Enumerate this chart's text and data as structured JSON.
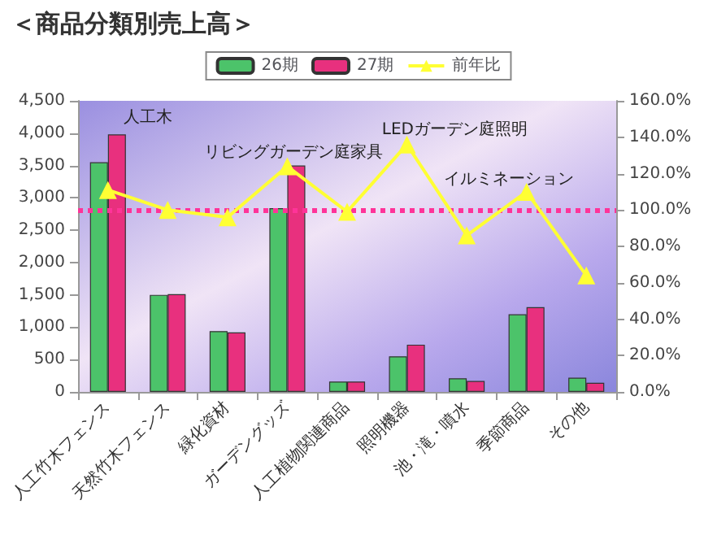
{
  "chart_data": {
    "type": "bar",
    "title": "＜商品分類別売上高＞",
    "categories": [
      "人工竹木フェンス",
      "天然竹木フェンス",
      "緑化資材",
      "ガーデングッズ",
      "人工植物関連商品",
      "照明機器",
      "池・滝・噴水",
      "季節商品",
      "その他"
    ],
    "series": [
      {
        "name": "26期",
        "color": "#4cc36a",
        "values": [
          3550,
          1500,
          940,
          2840,
          160,
          550,
          210,
          1200,
          220
        ]
      },
      {
        "name": "27期",
        "color": "#e8307e",
        "values": [
          3980,
          1510,
          920,
          3500,
          160,
          730,
          170,
          1310,
          140
        ]
      },
      {
        "name": "前年比",
        "type": "line",
        "axis": "y2",
        "color": "#ffff33",
        "marker": "triangle",
        "values": [
          111,
          100,
          96,
          124,
          99,
          136,
          86,
          110,
          64
        ]
      }
    ],
    "ylim": [
      0,
      4500
    ],
    "yticks": [
      0,
      500,
      {
        "value": 1000,
        "label": "1,000"
      },
      {
        "value": 1500,
        "label": "1,500"
      },
      {
        "value": 2000,
        "label": "2,000"
      },
      {
        "value": 2500,
        "label": "2,500"
      },
      {
        "value": 3000,
        "label": "3,000"
      },
      {
        "value": 3500,
        "label": "3,500"
      },
      {
        "value": 4000,
        "label": "4,000"
      },
      {
        "value": 4500,
        "label": "4,500"
      }
    ],
    "y2lim": [
      0,
      160
    ],
    "y2ticks": [
      {
        "value": 0,
        "label": "0.0%"
      },
      {
        "value": 20,
        "label": "20.0%"
      },
      {
        "value": 40,
        "label": "40.0%"
      },
      {
        "value": 60,
        "label": "60.0%"
      },
      {
        "value": 80,
        "label": "80.0%"
      },
      {
        "value": 100,
        "label": "100.0%"
      },
      {
        "value": 120,
        "label": "120.0%"
      },
      {
        "value": 140,
        "label": "140.0%"
      },
      {
        "value": 160,
        "label": "160.0%"
      }
    ],
    "ref_lines": [
      {
        "axis": "y2",
        "value": 100,
        "color": "#ff3399",
        "line_style": "dotted"
      }
    ],
    "annotations": [
      "人工木",
      "リビングガーデン庭家具",
      "LEDガーデン庭照明",
      "イルミネーション"
    ],
    "grid": false,
    "legend": "top"
  }
}
